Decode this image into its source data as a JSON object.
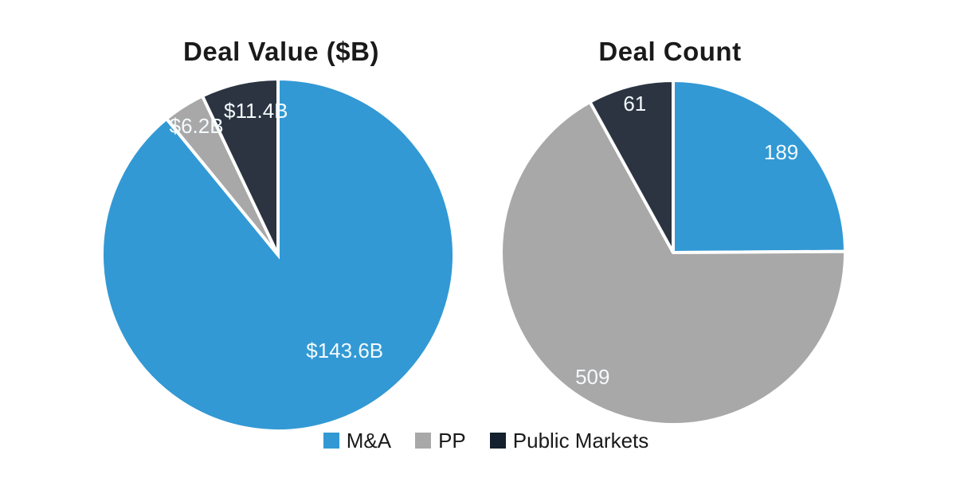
{
  "page": {
    "background": "#FFFFFF"
  },
  "colors": {
    "mna": "#3299D4",
    "pp": "#A8A8A8",
    "public_markets": "#2B3440",
    "public_markets_legend": "#14202D",
    "slice_border": "#FFFFFF",
    "slice_label": "#F4FAFD",
    "title_text": "#1A1A1A",
    "legend_text": "#1A1A1A"
  },
  "chart_data": [
    {
      "id": "deal-value",
      "type": "pie",
      "title": "Deal Value ($B)",
      "start_angle_deg": 0,
      "direction": "clockwise",
      "slices": [
        {
          "category": "M&A",
          "value": 143.6,
          "label": "$143.6B",
          "color": "mna",
          "label_angle_deg": 145.6,
          "label_radius_frac": 0.67
        },
        {
          "category": "PP",
          "value": 6.2,
          "label": "$6.2B",
          "color": "pp",
          "label_angle_deg": 327.4,
          "label_radius_frac": 0.86
        },
        {
          "category": "Public Markets",
          "value": 11.4,
          "label": "$11.4B",
          "color": "public_markets",
          "label_angle_deg": 351.2,
          "label_radius_frac": 0.82
        }
      ]
    },
    {
      "id": "deal-count",
      "type": "pie",
      "title": "Deal Count",
      "start_angle_deg": 0,
      "direction": "clockwise",
      "slices": [
        {
          "category": "M&A",
          "value": 189,
          "label": "189",
          "color": "mna",
          "label_angle_deg": 47.6,
          "label_radius_frac": 0.85
        },
        {
          "category": "PP",
          "value": 509,
          "label": "509",
          "color": "pp",
          "label_angle_deg": 212.6,
          "label_radius_frac": 0.87
        },
        {
          "category": "Public Markets",
          "value": 61,
          "label": "61",
          "color": "public_markets",
          "label_angle_deg": 345.4,
          "label_radius_frac": 0.885
        }
      ]
    }
  ],
  "legend": {
    "position": "bottom-center",
    "items": [
      {
        "label": "M&A",
        "color": "mna"
      },
      {
        "label": "PP",
        "color": "pp"
      },
      {
        "label": "Public Markets",
        "color": "public_markets_legend"
      }
    ]
  }
}
